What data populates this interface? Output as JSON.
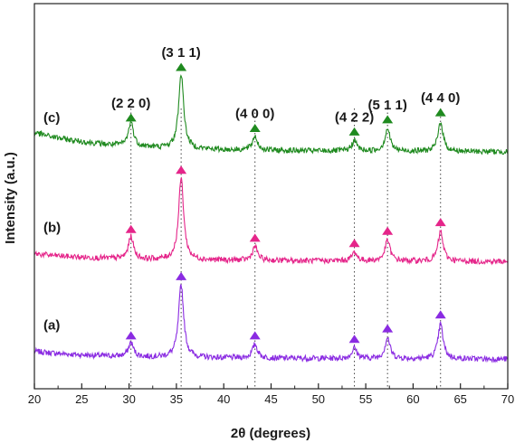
{
  "chart_data": {
    "type": "line",
    "xlabel": "2θ (degrees)",
    "ylabel": "Intensity (a.u.)",
    "xlim": [
      20,
      70
    ],
    "x_ticks": [
      20,
      25,
      30,
      35,
      40,
      45,
      50,
      55,
      60,
      65,
      70
    ],
    "y_ticks_shown": false,
    "grid": false,
    "legend": "none",
    "reference_lines": [
      30.2,
      35.5,
      43.3,
      53.8,
      57.3,
      62.9
    ],
    "peak_labels": [
      {
        "text": "(2 2 0)",
        "x": 30.2
      },
      {
        "text": "(3 1 1)",
        "x": 35.5
      },
      {
        "text": "(4 0 0)",
        "x": 43.3
      },
      {
        "text": "(4 2 2)",
        "x": 53.8
      },
      {
        "text": "(5 1 1)",
        "x": 57.3
      },
      {
        "text": "(4 4 0)",
        "x": 62.9
      }
    ],
    "series": [
      {
        "label": "(a)",
        "color": "#8a2be2",
        "marker": "triangle-up",
        "baseline": 1.0,
        "peaks": [
          {
            "x": 30.2,
            "height": 0.8
          },
          {
            "x": 35.5,
            "height": 4.2
          },
          {
            "x": 43.3,
            "height": 0.8
          },
          {
            "x": 53.8,
            "height": 0.6
          },
          {
            "x": 57.3,
            "height": 1.2
          },
          {
            "x": 62.9,
            "height": 2.0
          }
        ]
      },
      {
        "label": "(b)",
        "color": "#e5258a",
        "marker": "triangle-up",
        "baseline": 6.6,
        "peaks": [
          {
            "x": 30.2,
            "height": 1.3
          },
          {
            "x": 35.5,
            "height": 4.7
          },
          {
            "x": 43.3,
            "height": 0.8
          },
          {
            "x": 53.8,
            "height": 0.5
          },
          {
            "x": 57.3,
            "height": 1.2
          },
          {
            "x": 62.9,
            "height": 1.7
          }
        ]
      },
      {
        "label": "(c)",
        "color": "#1f8a1f",
        "marker": "triangle-up",
        "baseline": 12.9,
        "peaks": [
          {
            "x": 30.2,
            "height": 1.4
          },
          {
            "x": 35.5,
            "height": 4.3
          },
          {
            "x": 43.3,
            "height": 0.8
          },
          {
            "x": 53.8,
            "height": 0.6
          },
          {
            "x": 57.3,
            "height": 1.3
          },
          {
            "x": 62.9,
            "height": 1.7
          }
        ]
      }
    ]
  }
}
